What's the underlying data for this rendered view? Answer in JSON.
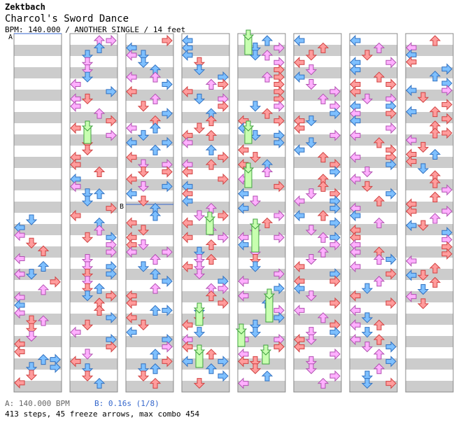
{
  "song": {
    "artist": "Zektbach",
    "title": "Charcol's Sword Dance",
    "info": "BPM: 140.000 / ANOTHER SINGLE / 14 feet"
  },
  "markers": {
    "a": "A",
    "b": "B"
  },
  "footer": {
    "bpm_a": "A: 140.000 BPM",
    "bpm_b": "B: 0.16s (1/8)",
    "stats": "413 steps, 45 freeze arrows, max combo 454"
  },
  "colors": {
    "red": "#ff9c9c",
    "red_stroke": "#d04040",
    "blue": "#7ec0ff",
    "blue_stroke": "#3070c0",
    "pink": "#ffb0ff",
    "pink_stroke": "#b050b0",
    "green": "#c8ffb0",
    "green_stroke": "#40a040",
    "stripe": "#cccccc"
  }
}
